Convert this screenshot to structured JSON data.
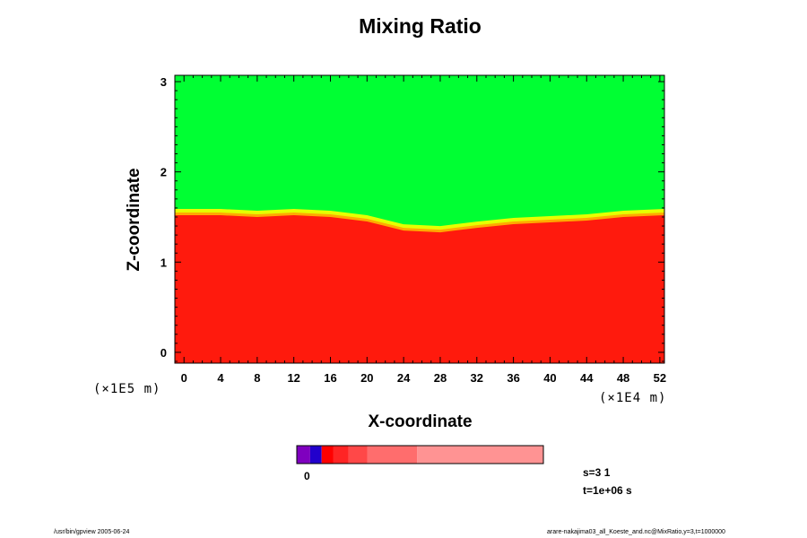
{
  "chart_data": {
    "type": "heatmap",
    "title": "Mixing Ratio",
    "xlabel": "X-coordinate",
    "ylabel": "Z-coordinate",
    "x_scale_label": "(×1E4 m)",
    "y_scale_label": "(×1E5 m)",
    "xlim": [
      -1,
      52.5
    ],
    "ylim": [
      -0.12,
      3.07
    ],
    "x_ticks": [
      "0",
      "4",
      "8",
      "12",
      "16",
      "20",
      "24",
      "28",
      "32",
      "36",
      "40",
      "44",
      "48",
      "52"
    ],
    "y_ticks": [
      "0",
      "1",
      "2",
      "3"
    ],
    "regions": [
      {
        "name": "upper layer",
        "color": "#00ff33"
      },
      {
        "name": "lower layer",
        "color": "#ff1a0d"
      }
    ],
    "interface_height": [
      {
        "x": -1,
        "z": 1.52
      },
      {
        "x": 4,
        "z": 1.52
      },
      {
        "x": 8,
        "z": 1.5
      },
      {
        "x": 12,
        "z": 1.52
      },
      {
        "x": 16,
        "z": 1.5
      },
      {
        "x": 20,
        "z": 1.45
      },
      {
        "x": 24,
        "z": 1.35
      },
      {
        "x": 28,
        "z": 1.33
      },
      {
        "x": 32,
        "z": 1.38
      },
      {
        "x": 36,
        "z": 1.42
      },
      {
        "x": 40,
        "z": 1.44
      },
      {
        "x": 44,
        "z": 1.46
      },
      {
        "x": 48,
        "z": 1.5
      },
      {
        "x": 52.5,
        "z": 1.52
      }
    ],
    "colorbar": {
      "tick_labels": [
        "0"
      ],
      "colors": [
        "#7f00bf",
        "#2200cc",
        "#ff0000",
        "#ff2424",
        "#ff4848",
        "#ff6d6d",
        "#ff9393"
      ]
    }
  },
  "annotations": {
    "step": "s=3 1",
    "time": "t=1e+06 s",
    "footer_left": "/usr/bin/gpview 2005-06-24",
    "footer_right": "arare-nakajima03_all_Koeste_and.nc@MixRatio,y=3,t=1000000"
  }
}
